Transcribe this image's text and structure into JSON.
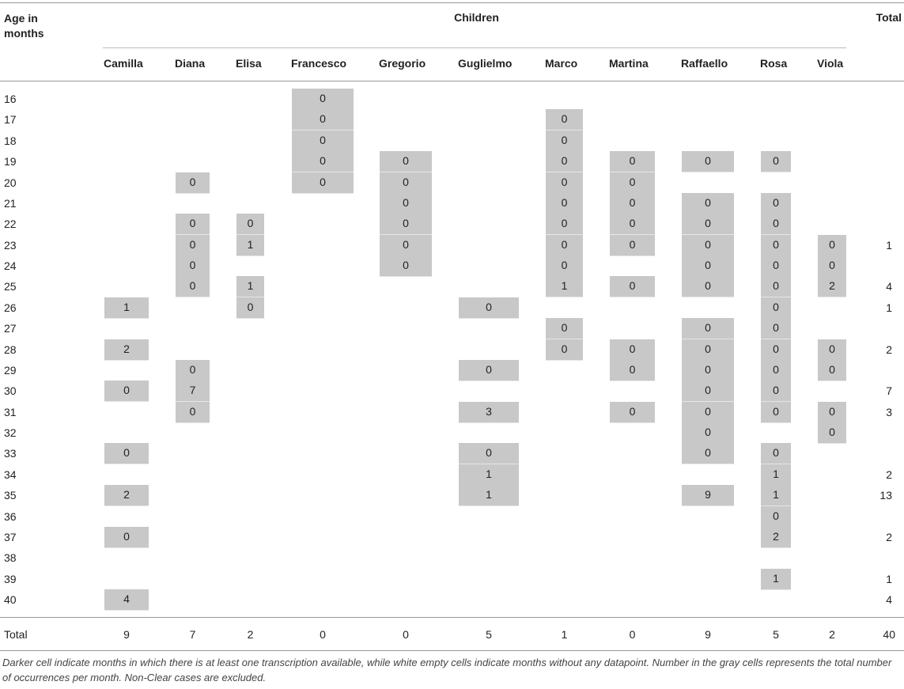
{
  "header": {
    "age_label": "Age in months",
    "group_label": "Children",
    "total_label": "Total",
    "columns": [
      "Camilla",
      "Diana",
      "Elisa",
      "Francesco",
      "Gregorio",
      "Guglielmo",
      "Marco",
      "Martina",
      "Raffaello",
      "Rosa",
      "Viola"
    ]
  },
  "rows": [
    {
      "age": 16,
      "cells": [
        null,
        null,
        null,
        0,
        null,
        null,
        null,
        null,
        null,
        null,
        null
      ],
      "total": null
    },
    {
      "age": 17,
      "cells": [
        null,
        null,
        null,
        0,
        null,
        null,
        0,
        null,
        null,
        null,
        null
      ],
      "total": null
    },
    {
      "age": 18,
      "cells": [
        null,
        null,
        null,
        0,
        null,
        null,
        0,
        null,
        null,
        null,
        null
      ],
      "total": null
    },
    {
      "age": 19,
      "cells": [
        null,
        null,
        null,
        0,
        0,
        null,
        0,
        0,
        0,
        0,
        null
      ],
      "total": null
    },
    {
      "age": 20,
      "cells": [
        null,
        0,
        null,
        0,
        0,
        null,
        0,
        0,
        null,
        null,
        null
      ],
      "total": null
    },
    {
      "age": 21,
      "cells": [
        null,
        null,
        null,
        null,
        0,
        null,
        0,
        0,
        0,
        0,
        null
      ],
      "total": null
    },
    {
      "age": 22,
      "cells": [
        null,
        0,
        0,
        null,
        0,
        null,
        0,
        0,
        0,
        0,
        null
      ],
      "total": null
    },
    {
      "age": 23,
      "cells": [
        null,
        0,
        1,
        null,
        0,
        null,
        0,
        0,
        0,
        0,
        0
      ],
      "total": 1
    },
    {
      "age": 24,
      "cells": [
        null,
        0,
        null,
        null,
        0,
        null,
        0,
        null,
        0,
        0,
        0
      ],
      "total": null
    },
    {
      "age": 25,
      "cells": [
        null,
        0,
        1,
        null,
        null,
        null,
        1,
        0,
        0,
        0,
        2
      ],
      "total": 4
    },
    {
      "age": 26,
      "cells": [
        1,
        null,
        0,
        null,
        null,
        0,
        null,
        null,
        null,
        0,
        null
      ],
      "total": 1
    },
    {
      "age": 27,
      "cells": [
        null,
        null,
        null,
        null,
        null,
        null,
        0,
        null,
        0,
        0,
        null
      ],
      "total": null
    },
    {
      "age": 28,
      "cells": [
        2,
        null,
        null,
        null,
        null,
        null,
        0,
        0,
        0,
        0,
        0
      ],
      "total": 2
    },
    {
      "age": 29,
      "cells": [
        null,
        0,
        null,
        null,
        null,
        0,
        null,
        0,
        0,
        0,
        0
      ],
      "total": null
    },
    {
      "age": 30,
      "cells": [
        0,
        7,
        null,
        null,
        null,
        null,
        null,
        null,
        0,
        0,
        null
      ],
      "total": 7
    },
    {
      "age": 31,
      "cells": [
        null,
        0,
        null,
        null,
        null,
        3,
        null,
        0,
        0,
        0,
        0
      ],
      "total": 3
    },
    {
      "age": 32,
      "cells": [
        null,
        null,
        null,
        null,
        null,
        null,
        null,
        null,
        0,
        null,
        0
      ],
      "total": null
    },
    {
      "age": 33,
      "cells": [
        0,
        null,
        null,
        null,
        null,
        0,
        null,
        null,
        0,
        0,
        null
      ],
      "total": null
    },
    {
      "age": 34,
      "cells": [
        null,
        null,
        null,
        null,
        null,
        1,
        null,
        null,
        null,
        1,
        null
      ],
      "total": 2
    },
    {
      "age": 35,
      "cells": [
        2,
        null,
        null,
        null,
        null,
        1,
        null,
        null,
        9,
        1,
        null
      ],
      "total": 13
    },
    {
      "age": 36,
      "cells": [
        null,
        null,
        null,
        null,
        null,
        null,
        null,
        null,
        null,
        0,
        null
      ],
      "total": null
    },
    {
      "age": 37,
      "cells": [
        0,
        null,
        null,
        null,
        null,
        null,
        null,
        null,
        null,
        2,
        null
      ],
      "total": 2
    },
    {
      "age": 38,
      "cells": [
        null,
        null,
        null,
        null,
        null,
        null,
        null,
        null,
        null,
        null,
        null
      ],
      "total": null
    },
    {
      "age": 39,
      "cells": [
        null,
        null,
        null,
        null,
        null,
        null,
        null,
        null,
        null,
        1,
        null
      ],
      "total": 1
    },
    {
      "age": 40,
      "cells": [
        4,
        null,
        null,
        null,
        null,
        null,
        null,
        null,
        null,
        null,
        null
      ],
      "total": 4
    }
  ],
  "footer": {
    "label": "Total",
    "values": [
      9,
      7,
      2,
      0,
      0,
      5,
      1,
      0,
      9,
      5,
      2
    ],
    "total": 40
  },
  "caption": "Darker cell indicate months in which there is at least one transcription available, while white empty cells indicate months without any datapoint. Number in the gray cells represents the total number of occurrences per month. Non-Clear cases are excluded."
}
